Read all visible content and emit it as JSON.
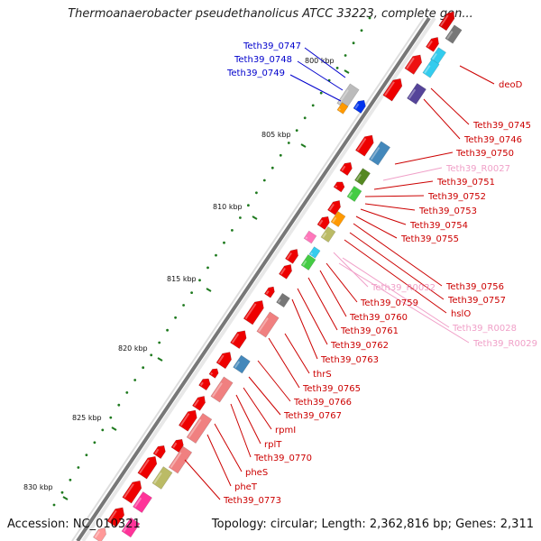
{
  "header": {
    "title": "Thermoanaerobacter pseudethanolicus ATCC 33223, complete gen..."
  },
  "footer": {
    "accession": "Accession: NC_010321",
    "topology": "Topology: circular; Length: 2,362,816 bp; Genes: 2,311"
  },
  "scale_ticks": [
    "800 kbp",
    "805 kbp",
    "810 kbp",
    "815 kbp",
    "820 kbp",
    "825 kbp",
    "830 kbp"
  ],
  "left_labels": [
    {
      "text": "Teth39_0747",
      "color": "#0000cc"
    },
    {
      "text": "Teth39_0748",
      "color": "#0000cc"
    },
    {
      "text": "Teth39_0749",
      "color": "#0000cc"
    }
  ],
  "right_labels": [
    {
      "text": "deoD",
      "color": "#cc0000"
    },
    {
      "text": "Teth39_0745",
      "color": "#cc0000"
    },
    {
      "text": "Teth39_0746",
      "color": "#cc0000"
    },
    {
      "text": "Teth39_0750",
      "color": "#cc0000"
    },
    {
      "text": "Teth39_R0027",
      "color": "#f0a0c8"
    },
    {
      "text": "Teth39_0751",
      "color": "#cc0000"
    },
    {
      "text": "Teth39_0752",
      "color": "#cc0000"
    },
    {
      "text": "Teth39_0753",
      "color": "#cc0000"
    },
    {
      "text": "Teth39_0754",
      "color": "#cc0000"
    },
    {
      "text": "Teth39_0755",
      "color": "#cc0000"
    },
    {
      "text": "Teth39_0756",
      "color": "#cc0000"
    },
    {
      "text": "Teth39_0757",
      "color": "#cc0000"
    },
    {
      "text": "hslO",
      "color": "#cc0000"
    },
    {
      "text": "Teth39_R0032",
      "color": "#f0a0c8"
    },
    {
      "text": "Teth39_0759",
      "color": "#cc0000"
    },
    {
      "text": "Teth39_R0028",
      "color": "#f0a0c8"
    },
    {
      "text": "Teth39_0760",
      "color": "#cc0000"
    },
    {
      "text": "Teth39_R0029",
      "color": "#f0a0c8"
    },
    {
      "text": "Teth39_0761",
      "color": "#cc0000"
    },
    {
      "text": "Teth39_0762",
      "color": "#cc0000"
    },
    {
      "text": "Teth39_0763",
      "color": "#cc0000"
    },
    {
      "text": "thrS",
      "color": "#cc0000"
    },
    {
      "text": "Teth39_0765",
      "color": "#cc0000"
    },
    {
      "text": "Teth39_0766",
      "color": "#cc0000"
    },
    {
      "text": "Teth39_0767",
      "color": "#cc0000"
    },
    {
      "text": "rpmI",
      "color": "#cc0000"
    },
    {
      "text": "rplT",
      "color": "#cc0000"
    },
    {
      "text": "Teth39_0770",
      "color": "#cc0000"
    },
    {
      "text": "pheS",
      "color": "#cc0000"
    },
    {
      "text": "pheT",
      "color": "#cc0000"
    },
    {
      "text": "Teth39_0773",
      "color": "#cc0000"
    }
  ]
}
